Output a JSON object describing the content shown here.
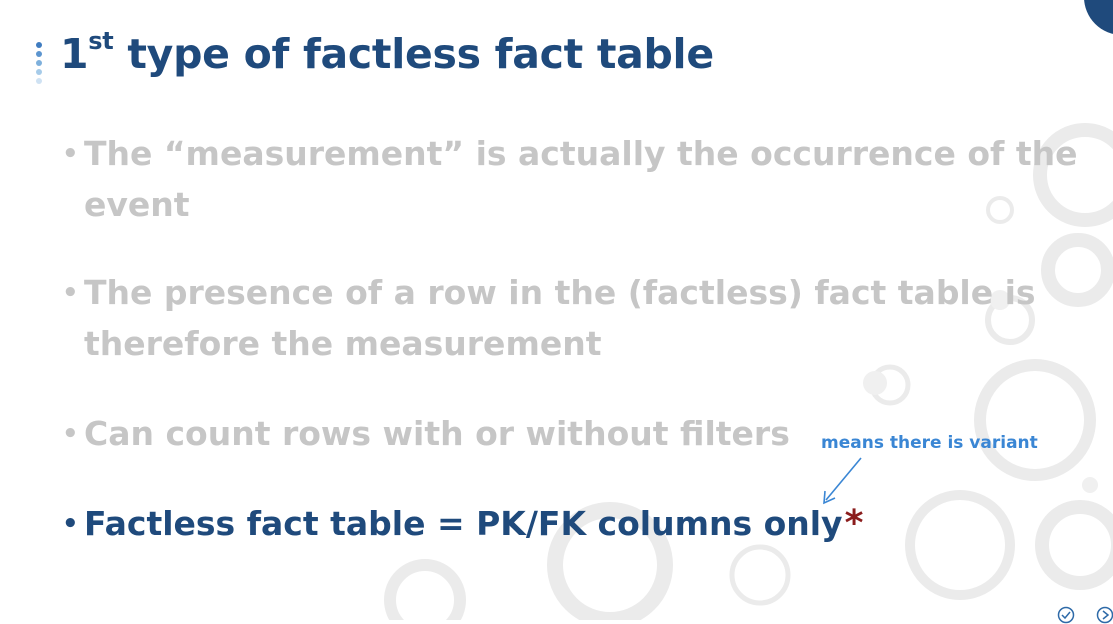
{
  "slide": {
    "title_number": "1",
    "title_superscript": "st",
    "title_rest": " type of factless fact table",
    "bullets": [
      {
        "text_line1": "The “measurement” is actually the occurrence of the",
        "text_line2": "event",
        "active": false
      },
      {
        "text_line1": "The presence of a row in the (factless) fact table is",
        "text_line2": "therefore the measurement",
        "active": false
      },
      {
        "text_line1": "Can count rows with or without filters",
        "text_line2": "",
        "active": false
      },
      {
        "text_line1": "Factless fact table = PK/FK columns only",
        "text_line2": "",
        "active": true,
        "asterisk": "*"
      }
    ],
    "bullet_glyph": "•",
    "annotation": "means there is variant"
  },
  "colors": {
    "title": "#1f4a7c",
    "inactive_text": "#c6c6c6",
    "active_text": "#1f4a7c",
    "asterisk": "#8b1d1d",
    "annotation": "#3a86d4",
    "decoration": "#e8e8e8"
  },
  "icons": {
    "title_marker": "vertical-dots-icon",
    "nav_left": "check-circle-icon",
    "nav_right": "next-circle-icon"
  }
}
